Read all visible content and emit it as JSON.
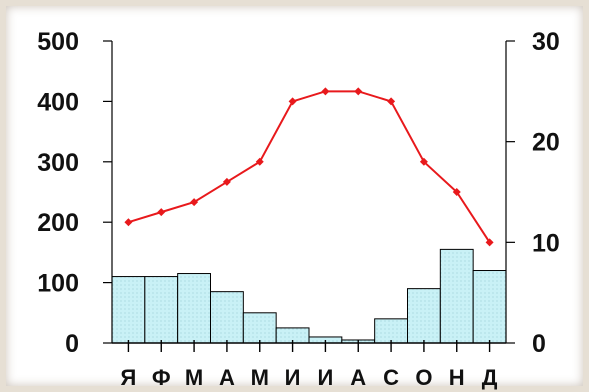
{
  "chart_data": {
    "type": "bar+line",
    "categories": [
      "Я",
      "Ф",
      "М",
      "А",
      "М",
      "И",
      "И",
      "А",
      "С",
      "О",
      "Н",
      "Д"
    ],
    "bar_series": {
      "axis": "left",
      "values": [
        110,
        110,
        115,
        85,
        50,
        25,
        10,
        5,
        40,
        90,
        155,
        120
      ]
    },
    "line_series": {
      "axis": "right",
      "values": [
        12,
        13,
        14,
        16,
        18,
        24,
        25,
        25,
        24,
        18,
        15,
        10
      ]
    },
    "left_axis": {
      "ylim": [
        0,
        500
      ],
      "ticks": [
        "0",
        "100",
        "200",
        "300",
        "400",
        "500"
      ]
    },
    "right_axis": {
      "ylim": [
        0,
        30
      ],
      "ticks": [
        "0",
        "10",
        "20",
        "30"
      ]
    },
    "colors": {
      "bar_fill": "#c9f1f6",
      "bar_stroke": "#000000",
      "line": "#e8191c",
      "marker": "#e8191c"
    },
    "grid": false
  }
}
